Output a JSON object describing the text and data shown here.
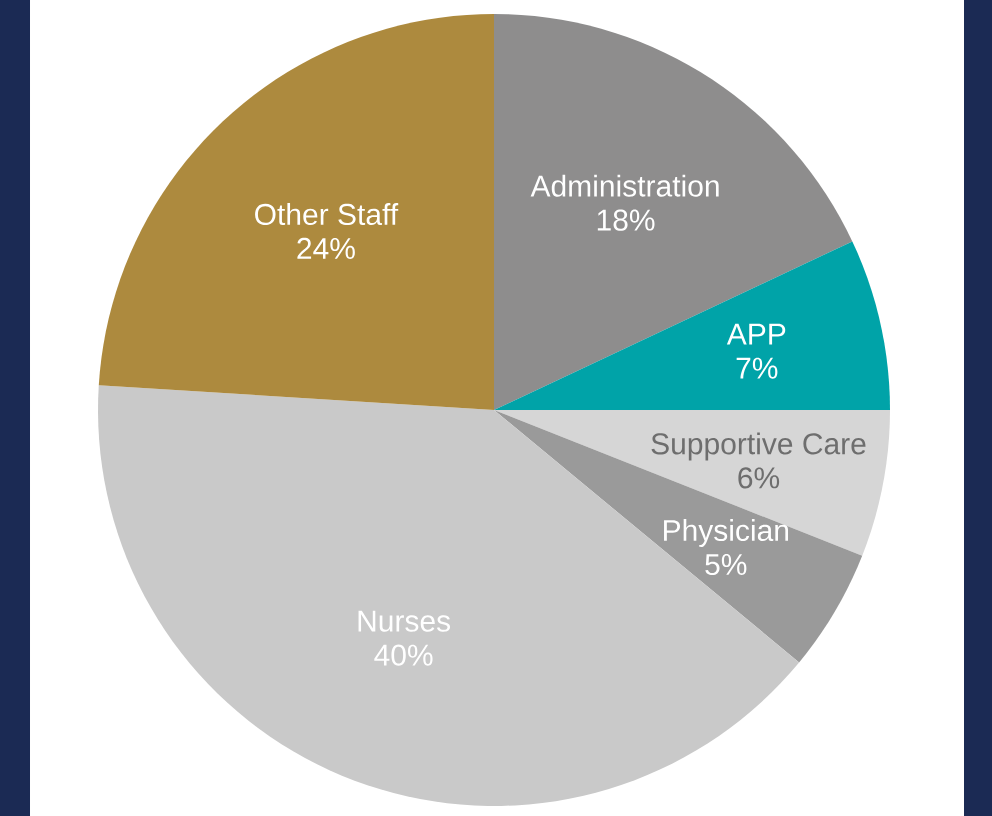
{
  "chart_data": {
    "type": "pie",
    "categories": [
      "Administration",
      "APP",
      "Supportive Care",
      "Physician",
      "Nurses",
      "Other Staff"
    ],
    "values": [
      18,
      7,
      6,
      5,
      40,
      24
    ],
    "value_labels": [
      "18%",
      "7%",
      "6%",
      "5%",
      "40%",
      "24%"
    ],
    "colors": [
      "#8e8d8d",
      "#00a3a8",
      "#d6d6d6",
      "#9a9a9a",
      "#c9c9c9",
      "#ad8a3e"
    ]
  }
}
